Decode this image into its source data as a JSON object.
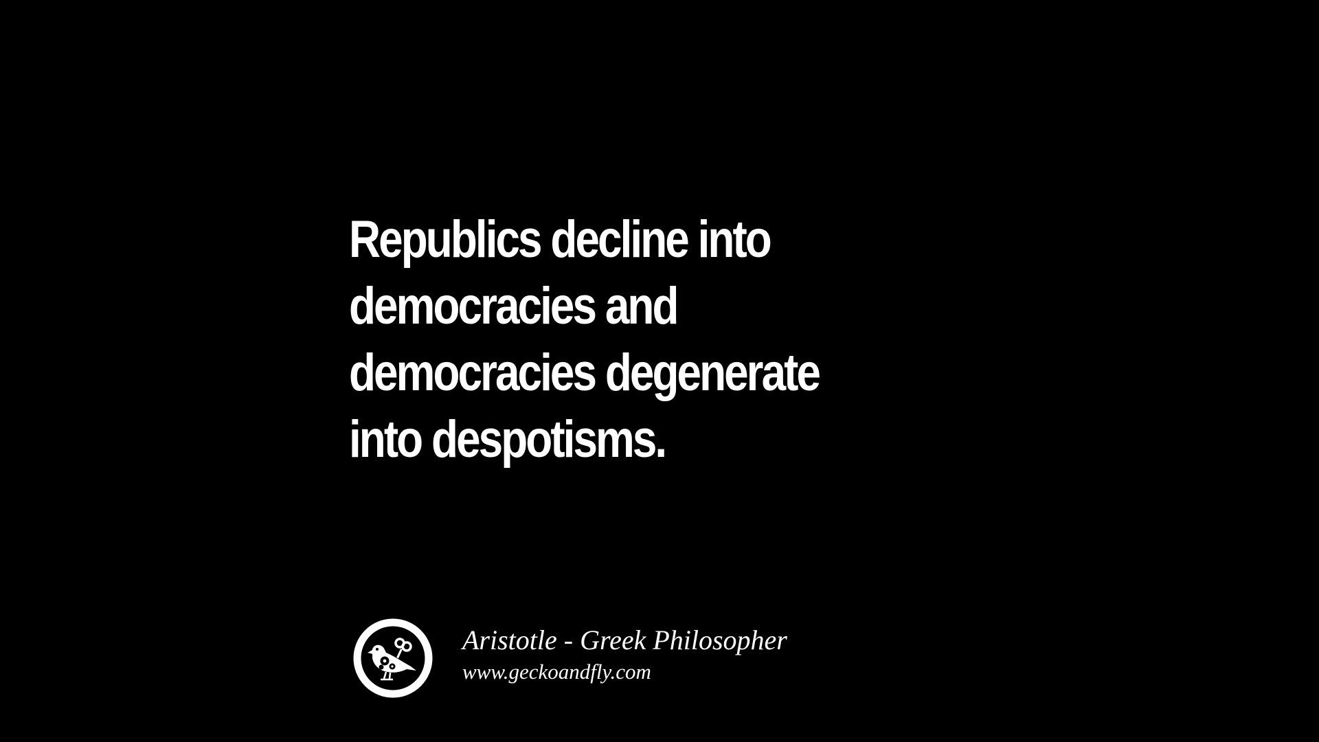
{
  "quote": {
    "lines": [
      "Republics decline into",
      "democracies and",
      "democracies degenerate",
      "into despotisms."
    ]
  },
  "attribution": {
    "author": "Aristotle - Greek Philosopher",
    "website": "www.geckoandfly.com",
    "logo_icon": "bird-with-gears-logo-icon"
  },
  "colors": {
    "background": "#000000",
    "text": "#ffffff"
  }
}
